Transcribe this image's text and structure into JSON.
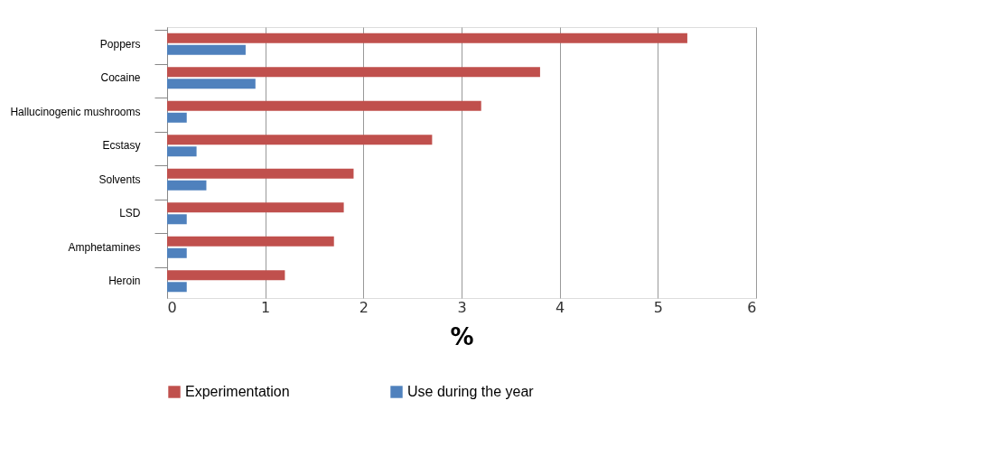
{
  "chart_data": {
    "type": "bar",
    "orientation": "horizontal",
    "xlabel": "%",
    "categories": [
      "Poppers",
      "Cocaine",
      "Hallucinogenic mushrooms",
      "Ecstasy",
      "Solvents",
      "LSD",
      "Amphetamines",
      "Heroin"
    ],
    "series": [
      {
        "name": "Experimentation",
        "color": "#c0504d",
        "values": [
          5.3,
          3.8,
          3.2,
          2.7,
          1.9,
          1.8,
          1.7,
          1.2
        ]
      },
      {
        "name": "Use during the year",
        "color": "#4f81bd",
        "values": [
          0.8,
          0.9,
          0.2,
          0.3,
          0.4,
          0.2,
          0.2,
          0.2
        ]
      }
    ],
    "xlim": [
      0,
      6
    ],
    "xticks": [
      0,
      1,
      2,
      3,
      4,
      5,
      6
    ],
    "grid": "x",
    "legend": "bottom"
  }
}
